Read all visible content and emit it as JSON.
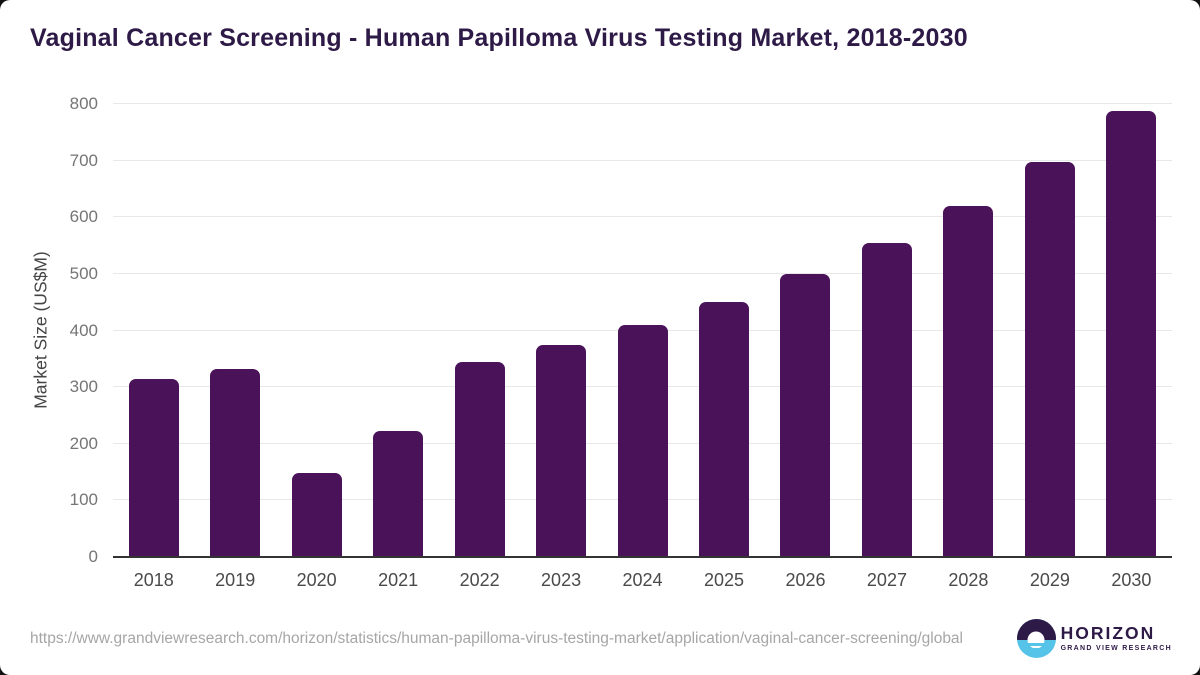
{
  "header": {
    "title": "Vaginal Cancer Screening - Human Papilloma Virus Testing Market, 2018-2030"
  },
  "chart_data": {
    "type": "bar",
    "title": "Vaginal Cancer Screening - Human Papilloma Virus Testing Market, 2018-2030",
    "categories": [
      "2018",
      "2019",
      "2020",
      "2021",
      "2022",
      "2023",
      "2024",
      "2025",
      "2026",
      "2027",
      "2028",
      "2029",
      "2030"
    ],
    "values": [
      315,
      332,
      148,
      222,
      344,
      375,
      410,
      451,
      499,
      555,
      620,
      697,
      788
    ],
    "xlabel": "",
    "ylabel": "Market Size (US$M)",
    "ylim": [
      0,
      800
    ],
    "yticks": [
      0,
      100,
      200,
      300,
      400,
      500,
      600,
      700,
      800
    ],
    "grid": true,
    "legend_position": "none",
    "bar_color": "#4A1259"
  },
  "footer": {
    "source_url": "https://www.grandviewresearch.com/horizon/statistics/human-papilloma-virus-testing-market/application/vaginal-cancer-screening/global",
    "logo": {
      "brand": "HORIZON",
      "tagline": "GRAND VIEW RESEARCH",
      "icon": "horizon-sunrise-icon",
      "purple": "#2E1A47",
      "blue": "#56C3E8"
    }
  },
  "colors": {
    "title": "#2E1A47",
    "gridline": "#e8e8e8",
    "axis_line": "#333333",
    "y_tick": "#757575",
    "x_tick": "#4a4a4a",
    "axis_label": "#454545",
    "source_url": "#a6a6a6"
  }
}
